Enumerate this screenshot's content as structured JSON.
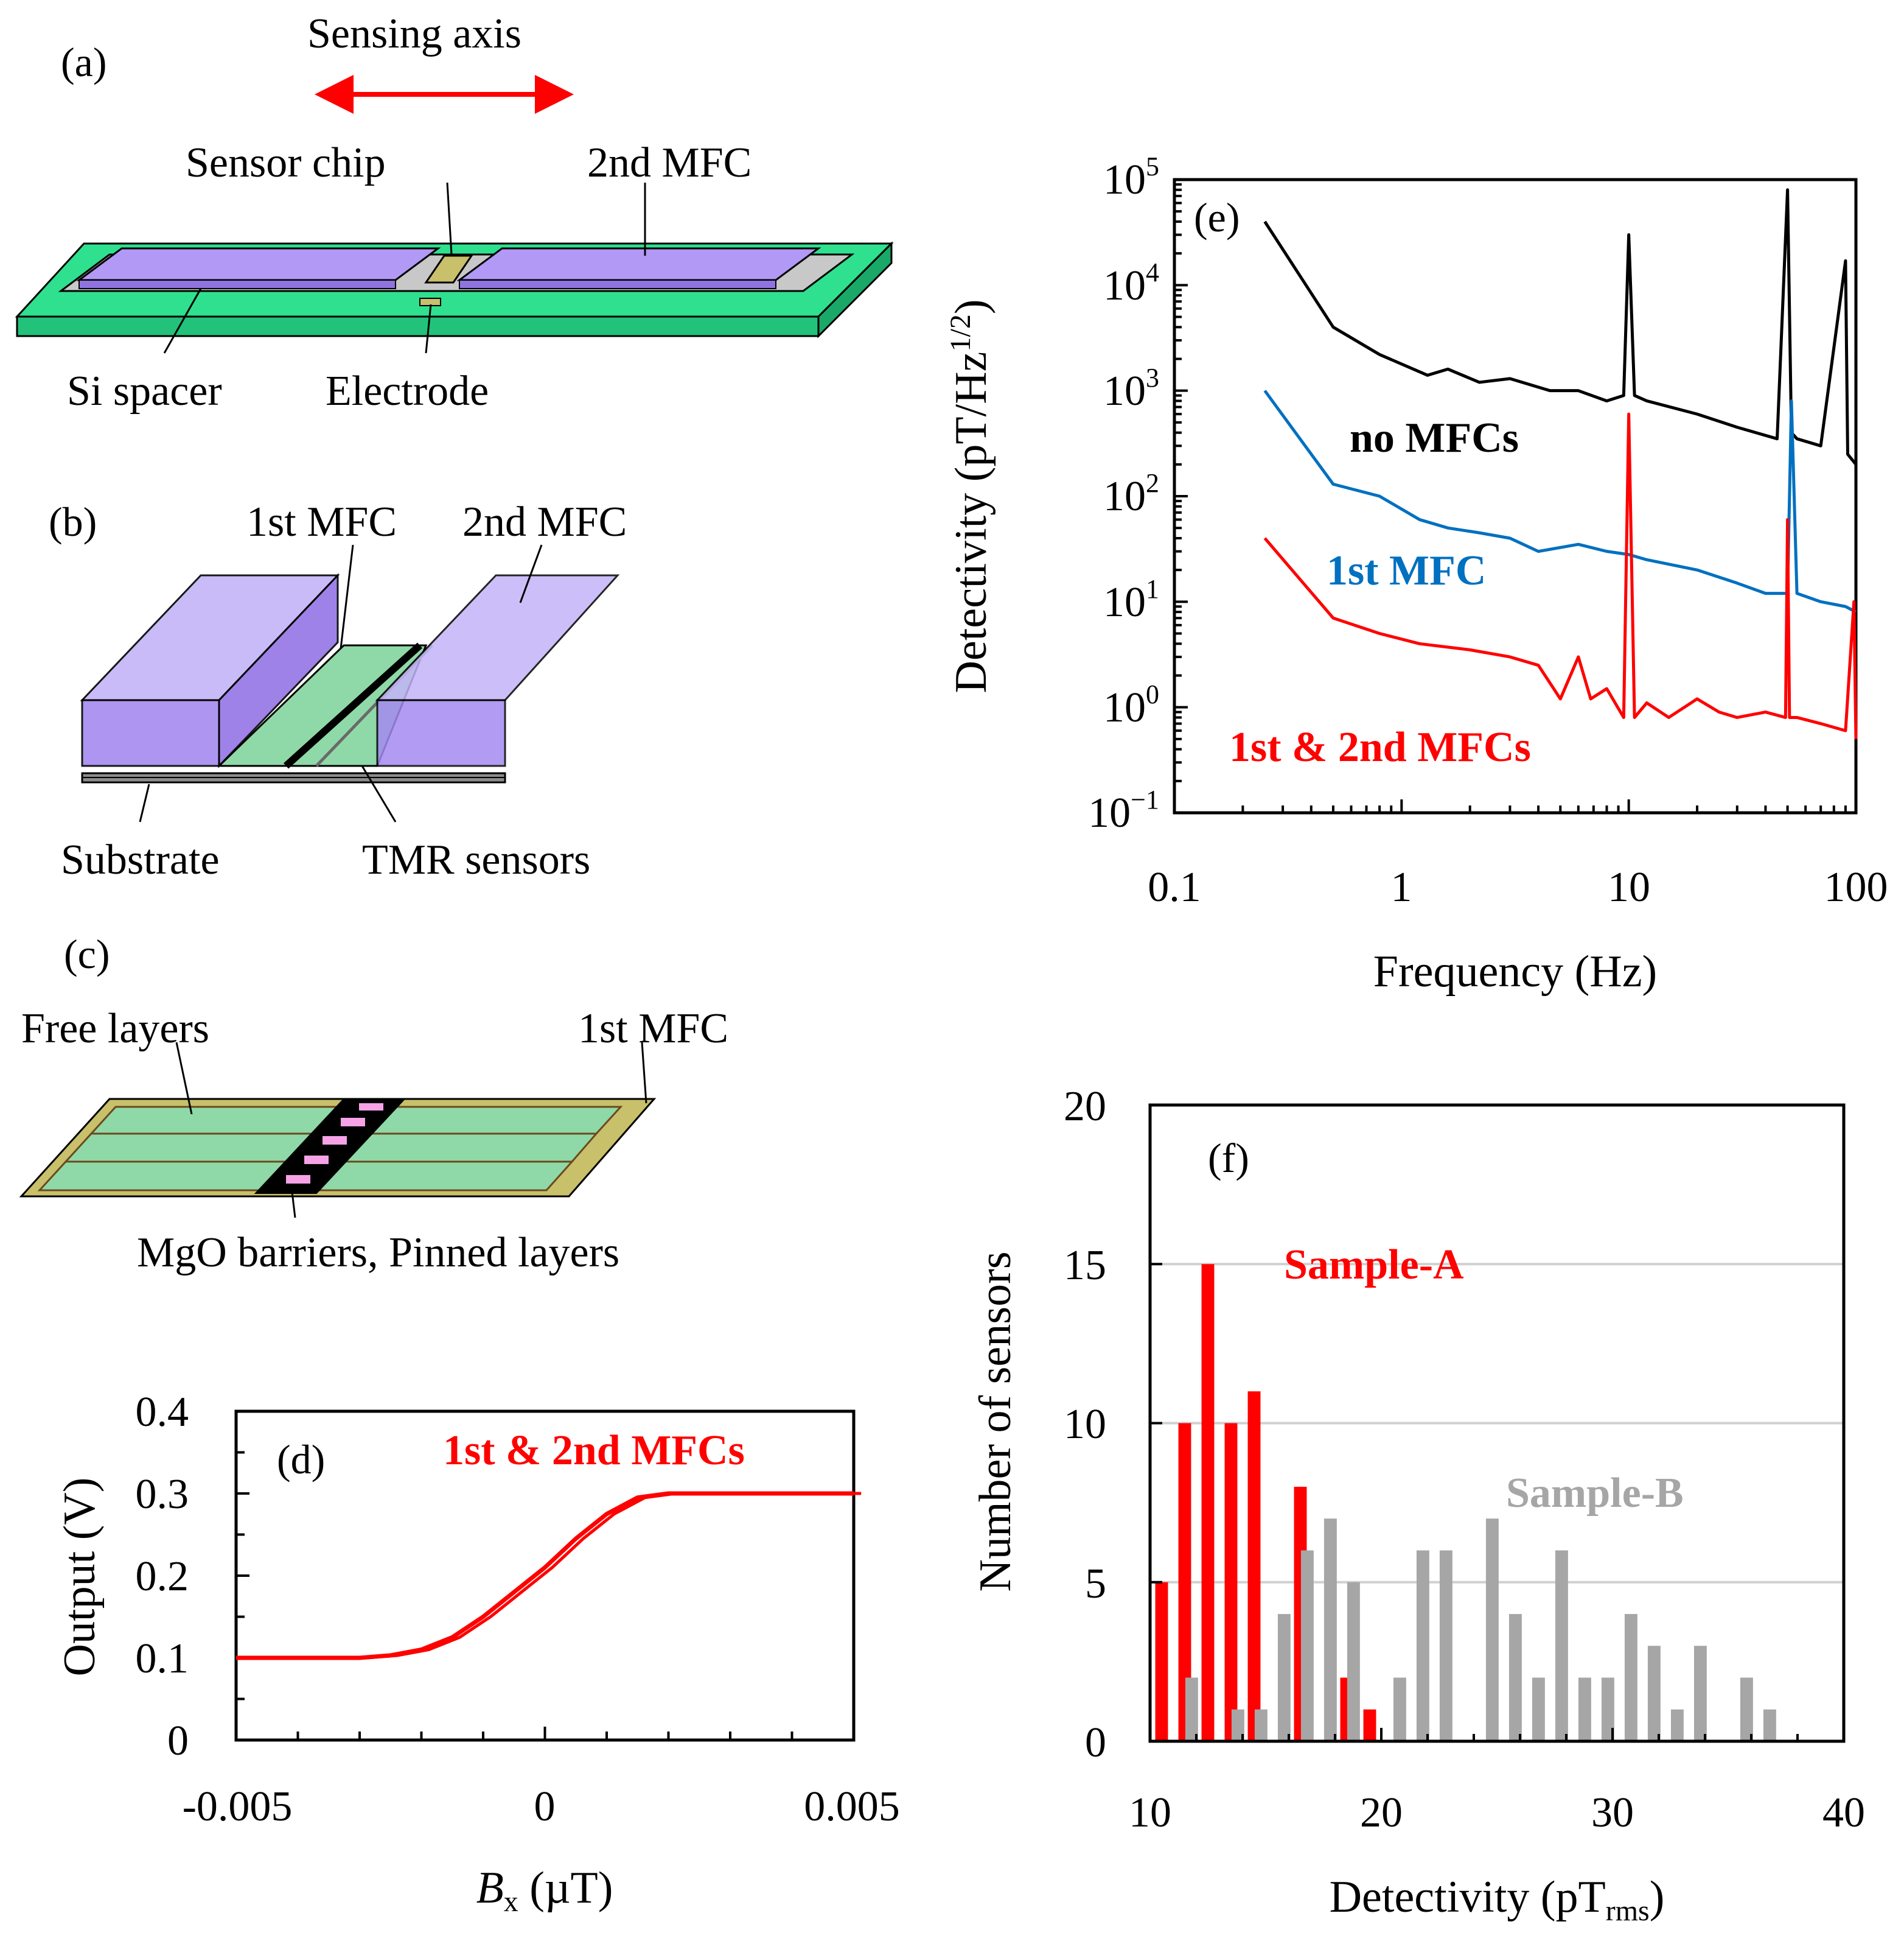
{
  "panels": {
    "a": {
      "label": "(a)",
      "sensing_axis": "Sensing axis",
      "sensor_chip": "Sensor chip",
      "second_mfc": "2nd MFC",
      "si_spacer": "Si spacer",
      "electrode": "Electrode"
    },
    "b": {
      "label": "(b)",
      "first_mfc": "1st MFC",
      "second_mfc": "2nd MFC",
      "substrate": "Substrate",
      "tmr_sensors": "TMR sensors"
    },
    "c": {
      "label": "(c)",
      "free_layers": "Free layers",
      "first_mfc": "1st MFC",
      "barriers": "MgO barriers, Pinned layers"
    }
  },
  "colors": {
    "red": "#ff0000",
    "blue": "#0070c0",
    "black": "#000000",
    "gray": "#a6a6a6",
    "mfc_purple": "#b199f5",
    "board_green": "#2fe08f",
    "layer_green": "#8fd9a8",
    "frame_olive": "#c8c06a"
  },
  "chart_data": [
    {
      "id": "d",
      "type": "line",
      "panel_label": "(d)",
      "title": "",
      "xlabel_italic": "B",
      "xlabel_sub": "x",
      "xlabel_rest": " (µT)",
      "ylabel": "Output (V)",
      "xlim": [
        -0.005,
        0.005
      ],
      "ylim": [
        0,
        0.4
      ],
      "xtick_labels": [
        "-0.005",
        "0",
        "0.005"
      ],
      "ytick_labels": [
        "0",
        "0.1",
        "0.2",
        "0.3",
        "0.4"
      ],
      "series": [
        {
          "name": "1st & 2nd MFCs",
          "color": "#ff0000",
          "x": [
            -0.005,
            -0.003,
            -0.0025,
            -0.002,
            -0.0015,
            -0.001,
            -0.0005,
            0,
            0.0005,
            0.001,
            0.0015,
            0.002,
            0.005
          ],
          "y": [
            0.1,
            0.1,
            0.103,
            0.11,
            0.125,
            0.15,
            0.18,
            0.21,
            0.245,
            0.275,
            0.295,
            0.3,
            0.3
          ]
        }
      ]
    },
    {
      "id": "e",
      "type": "line",
      "scale": "log-log",
      "panel_label": "(e)",
      "xlabel": "Frequency (Hz)",
      "ylabel": "Detectivity (pT/Hz",
      "ylabel_sup": "1/2",
      "ylabel_end": ")",
      "xlim": [
        0.1,
        100
      ],
      "ylim": [
        0.1,
        100000
      ],
      "xtick_labels": [
        "0.1",
        "1",
        "10",
        "100"
      ],
      "ytick_base": "10",
      "ytick_exponents": [
        "−1",
        "0",
        "1",
        "2",
        "3",
        "4",
        "5"
      ],
      "series": [
        {
          "name": "no MFCs",
          "color": "#000000",
          "x": [
            0.25,
            0.5,
            0.8,
            1.3,
            1.6,
            2.2,
            3,
            4.5,
            6,
            8,
            9.5,
            10,
            10.6,
            12,
            20,
            30,
            45,
            50,
            52,
            55,
            70,
            90,
            92,
            100
          ],
          "y": [
            40000,
            4000,
            2200,
            1400,
            1600,
            1200,
            1300,
            1000,
            1000,
            800,
            900,
            30000,
            900,
            800,
            600,
            450,
            350,
            80000,
            400,
            350,
            300,
            17000,
            250,
            200
          ]
        },
        {
          "name": "1st MFC",
          "color": "#0070c0",
          "x": [
            0.25,
            0.5,
            0.8,
            1.2,
            1.6,
            2.2,
            3,
            4,
            6,
            8,
            10,
            12,
            20,
            30,
            40,
            50,
            52,
            55,
            70,
            90,
            100
          ],
          "y": [
            1000,
            130,
            100,
            60,
            50,
            45,
            40,
            30,
            35,
            30,
            28,
            25,
            20,
            15,
            12,
            12,
            800,
            12,
            10,
            9,
            8
          ]
        },
        {
          "name": "1st & 2nd MFCs",
          "color": "#ff0000",
          "x": [
            0.25,
            0.5,
            0.8,
            1.2,
            2,
            3,
            4,
            5,
            6,
            6.8,
            8,
            9.5,
            10,
            10.6,
            12,
            15,
            20,
            25,
            30,
            40,
            49,
            50,
            51,
            55,
            70,
            90,
            98,
            100
          ],
          "y": [
            40,
            7,
            5,
            4,
            3.5,
            3,
            2.5,
            1.2,
            3,
            1.2,
            1.5,
            0.8,
            600,
            0.8,
            1.1,
            0.8,
            1.2,
            0.9,
            0.8,
            0.9,
            0.8,
            60,
            0.8,
            0.8,
            0.7,
            0.6,
            10,
            0.5
          ]
        }
      ]
    },
    {
      "id": "f",
      "type": "bar",
      "panel_label": "(f)",
      "xlabel": "Detectivity (pT",
      "xlabel_sub": "rms",
      "xlabel_end": ")",
      "ylabel": "Number of sensors",
      "xlim": [
        10,
        40
      ],
      "ylim": [
        0,
        20
      ],
      "xtick_labels": [
        "10",
        "20",
        "30",
        "40"
      ],
      "ytick_labels": [
        "0",
        "5",
        "10",
        "15",
        "20"
      ],
      "grid": true,
      "series": [
        {
          "name": "Sample-A",
          "color": "#ff0000",
          "x": [
            10.5,
            11.5,
            12.5,
            13.5,
            14.5,
            16.5,
            18.5,
            19.5
          ],
          "values": [
            5,
            10,
            15,
            10,
            11,
            8,
            2,
            1
          ]
        },
        {
          "name": "Sample-B",
          "color": "#a6a6a6",
          "x": [
            11.8,
            13.8,
            14.8,
            15.8,
            16.8,
            17.8,
            18.8,
            20.8,
            21.8,
            22.8,
            24.8,
            25.8,
            26.8,
            27.8,
            28.8,
            29.8,
            30.8,
            31.8,
            32.8,
            33.8,
            35.8,
            36.8
          ],
          "values": [
            2,
            1,
            1,
            4,
            6,
            7,
            5,
            2,
            6,
            6,
            7,
            4,
            2,
            6,
            2,
            2,
            4,
            3,
            1,
            3,
            2,
            1
          ]
        }
      ]
    }
  ]
}
